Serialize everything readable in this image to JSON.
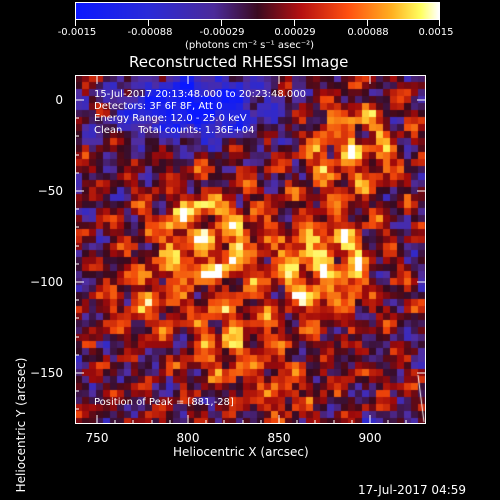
{
  "colorbar": {
    "tick_labels": [
      "-0.0015",
      "-0.00088",
      "-0.00029",
      "0.00029",
      "0.00088",
      "0.0015"
    ],
    "unit_label": "(photons cm⁻² s⁻¹ asec⁻²)"
  },
  "title": "Reconstructed RHESSI Image",
  "info": {
    "time": "15-Jul-2017 20:13:48.000 to 20:23:48.000",
    "detectors": "Detectors: 3F 6F 8F, Att 0",
    "energy": "Energy Range: 12.0 - 25.0 keV",
    "clean": "Clean     Total counts: 1.36E+04"
  },
  "peak": "Position of Peak = [881,-28]",
  "axes": {
    "xlabel": "Heliocentric X (arcsec)",
    "ylabel": "Heliocentric Y (arcsec)",
    "xticks": [
      "750",
      "800",
      "850",
      "900"
    ],
    "yticks": [
      "0",
      "−50",
      "−100",
      "−150"
    ],
    "xrange": [
      738,
      930
    ],
    "yrange": [
      8,
      -182
    ]
  },
  "timestamp": "17-Jul-2017 04:59",
  "colors": {
    "negative": "#1a2cff",
    "zero": "#5a2aa0",
    "positive_low": "#c01010",
    "positive_high": "#ffff90"
  }
}
